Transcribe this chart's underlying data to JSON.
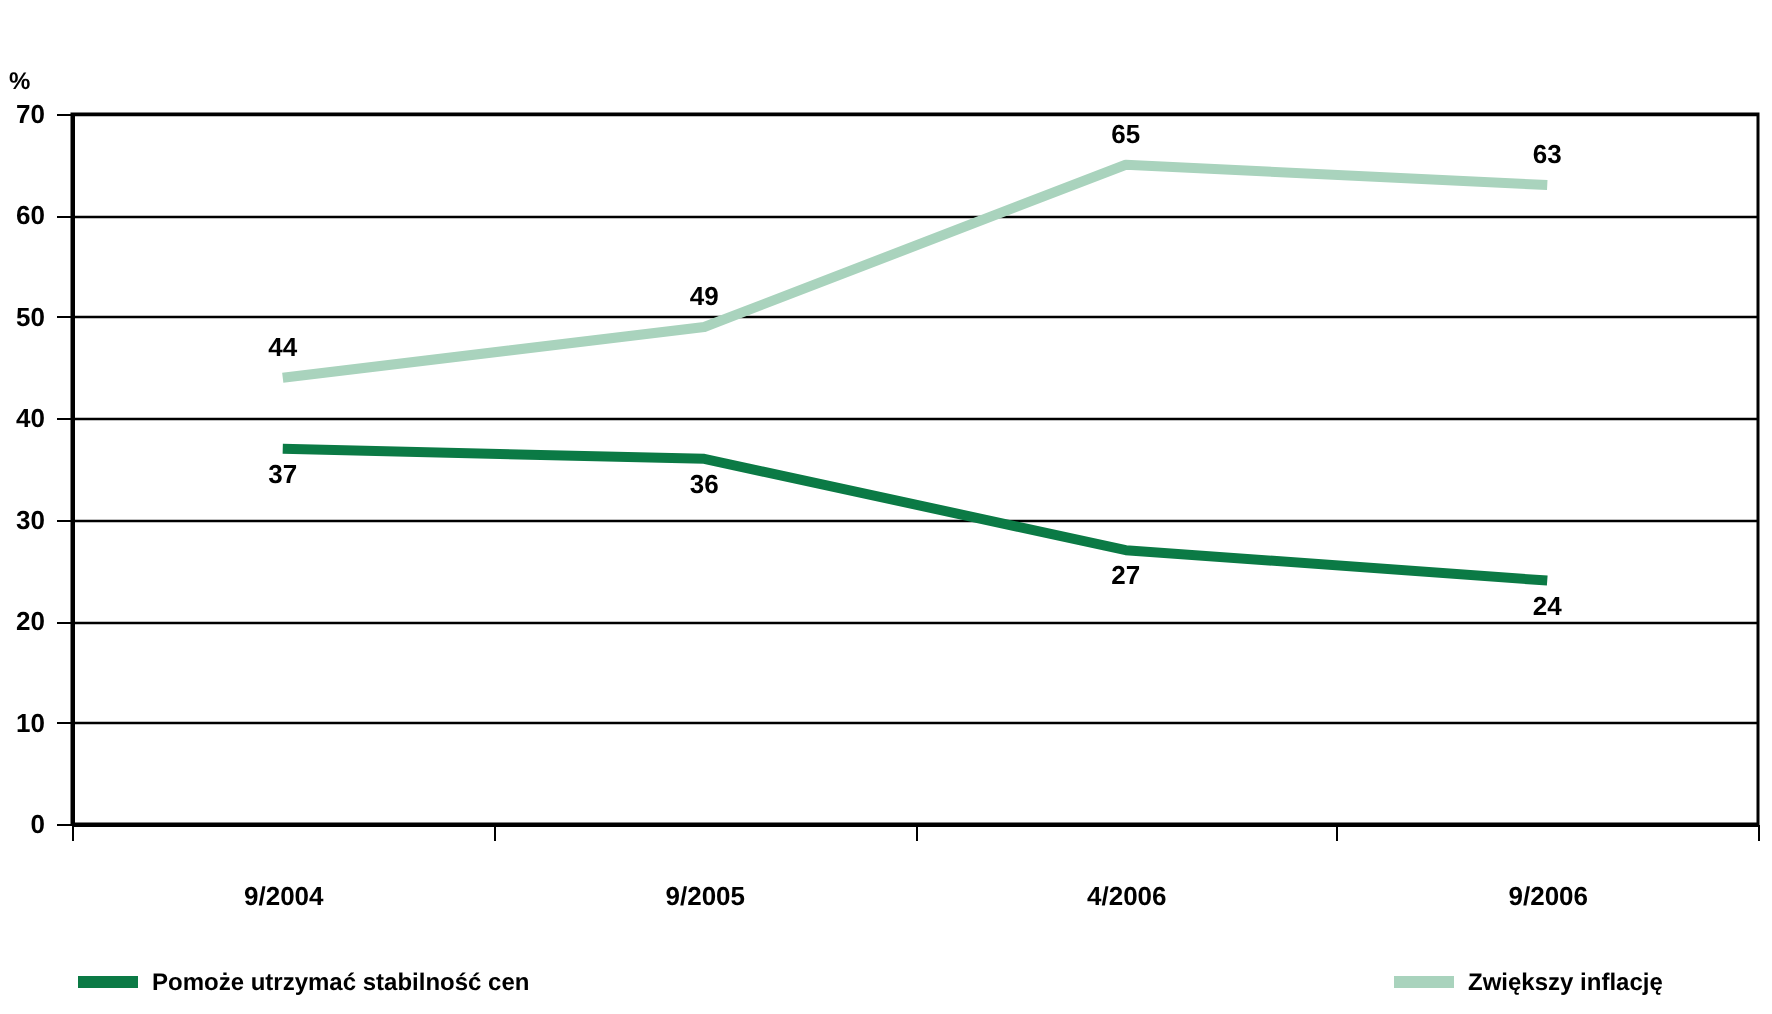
{
  "chart_data": {
    "type": "line",
    "ylabel": "%",
    "categories": [
      "9/2004",
      "9/2005",
      "4/2006",
      "9/2006"
    ],
    "series": [
      {
        "name": "Pomoże utrzymać stabilność cen",
        "color": "#0b7a45",
        "values": [
          37,
          36,
          27,
          24
        ]
      },
      {
        "name": "Zwiększy inflację",
        "color": "#a9d3bd",
        "values": [
          44,
          49,
          65,
          63
        ]
      }
    ],
    "ylim": [
      0,
      70
    ],
    "yticks": [
      0,
      10,
      20,
      30,
      40,
      50,
      60,
      70
    ],
    "grid": "y",
    "legend": "bottom",
    "data_labels": true,
    "marker": "none",
    "line_style": "solid"
  }
}
